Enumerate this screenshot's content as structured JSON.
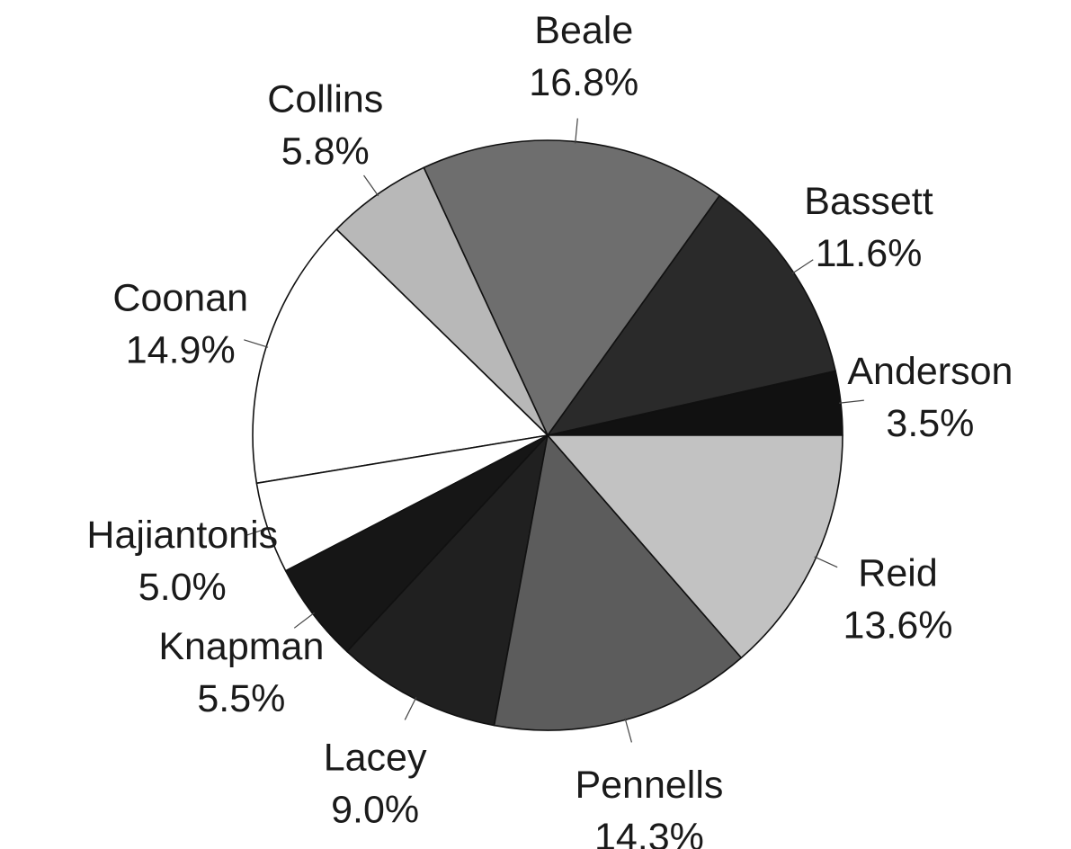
{
  "chart_data": {
    "type": "pie",
    "title": "",
    "series": [
      {
        "values": [
          3.5,
          11.6,
          16.8,
          5.8,
          14.9,
          5.0,
          5.5,
          9.0,
          14.3,
          13.6
        ]
      }
    ],
    "categories": [
      "Anderson",
      "Bassett",
      "Beale",
      "Collins",
      "Coonan",
      "Hajiantonis",
      "Knapman",
      "Lacey",
      "Pennells",
      "Reid"
    ],
    "value_labels": [
      "3.5%",
      "11.6%",
      "16.8%",
      "5.8%",
      "14.9%",
      "5.0%",
      "5.5%",
      "9.0%",
      "14.3%",
      "13.6%"
    ],
    "colors": [
      "#111111",
      "#2a2a2a",
      "#6e6e6e",
      "#b8b8b8",
      "#ffffff",
      "#ffffff",
      "#161616",
      "#202020",
      "#5c5c5c",
      "#c2c2c2"
    ],
    "start_angle_deg": 0,
    "direction": "counterclockwise",
    "legend": "none",
    "labels": "outside-with-leader-lines"
  }
}
